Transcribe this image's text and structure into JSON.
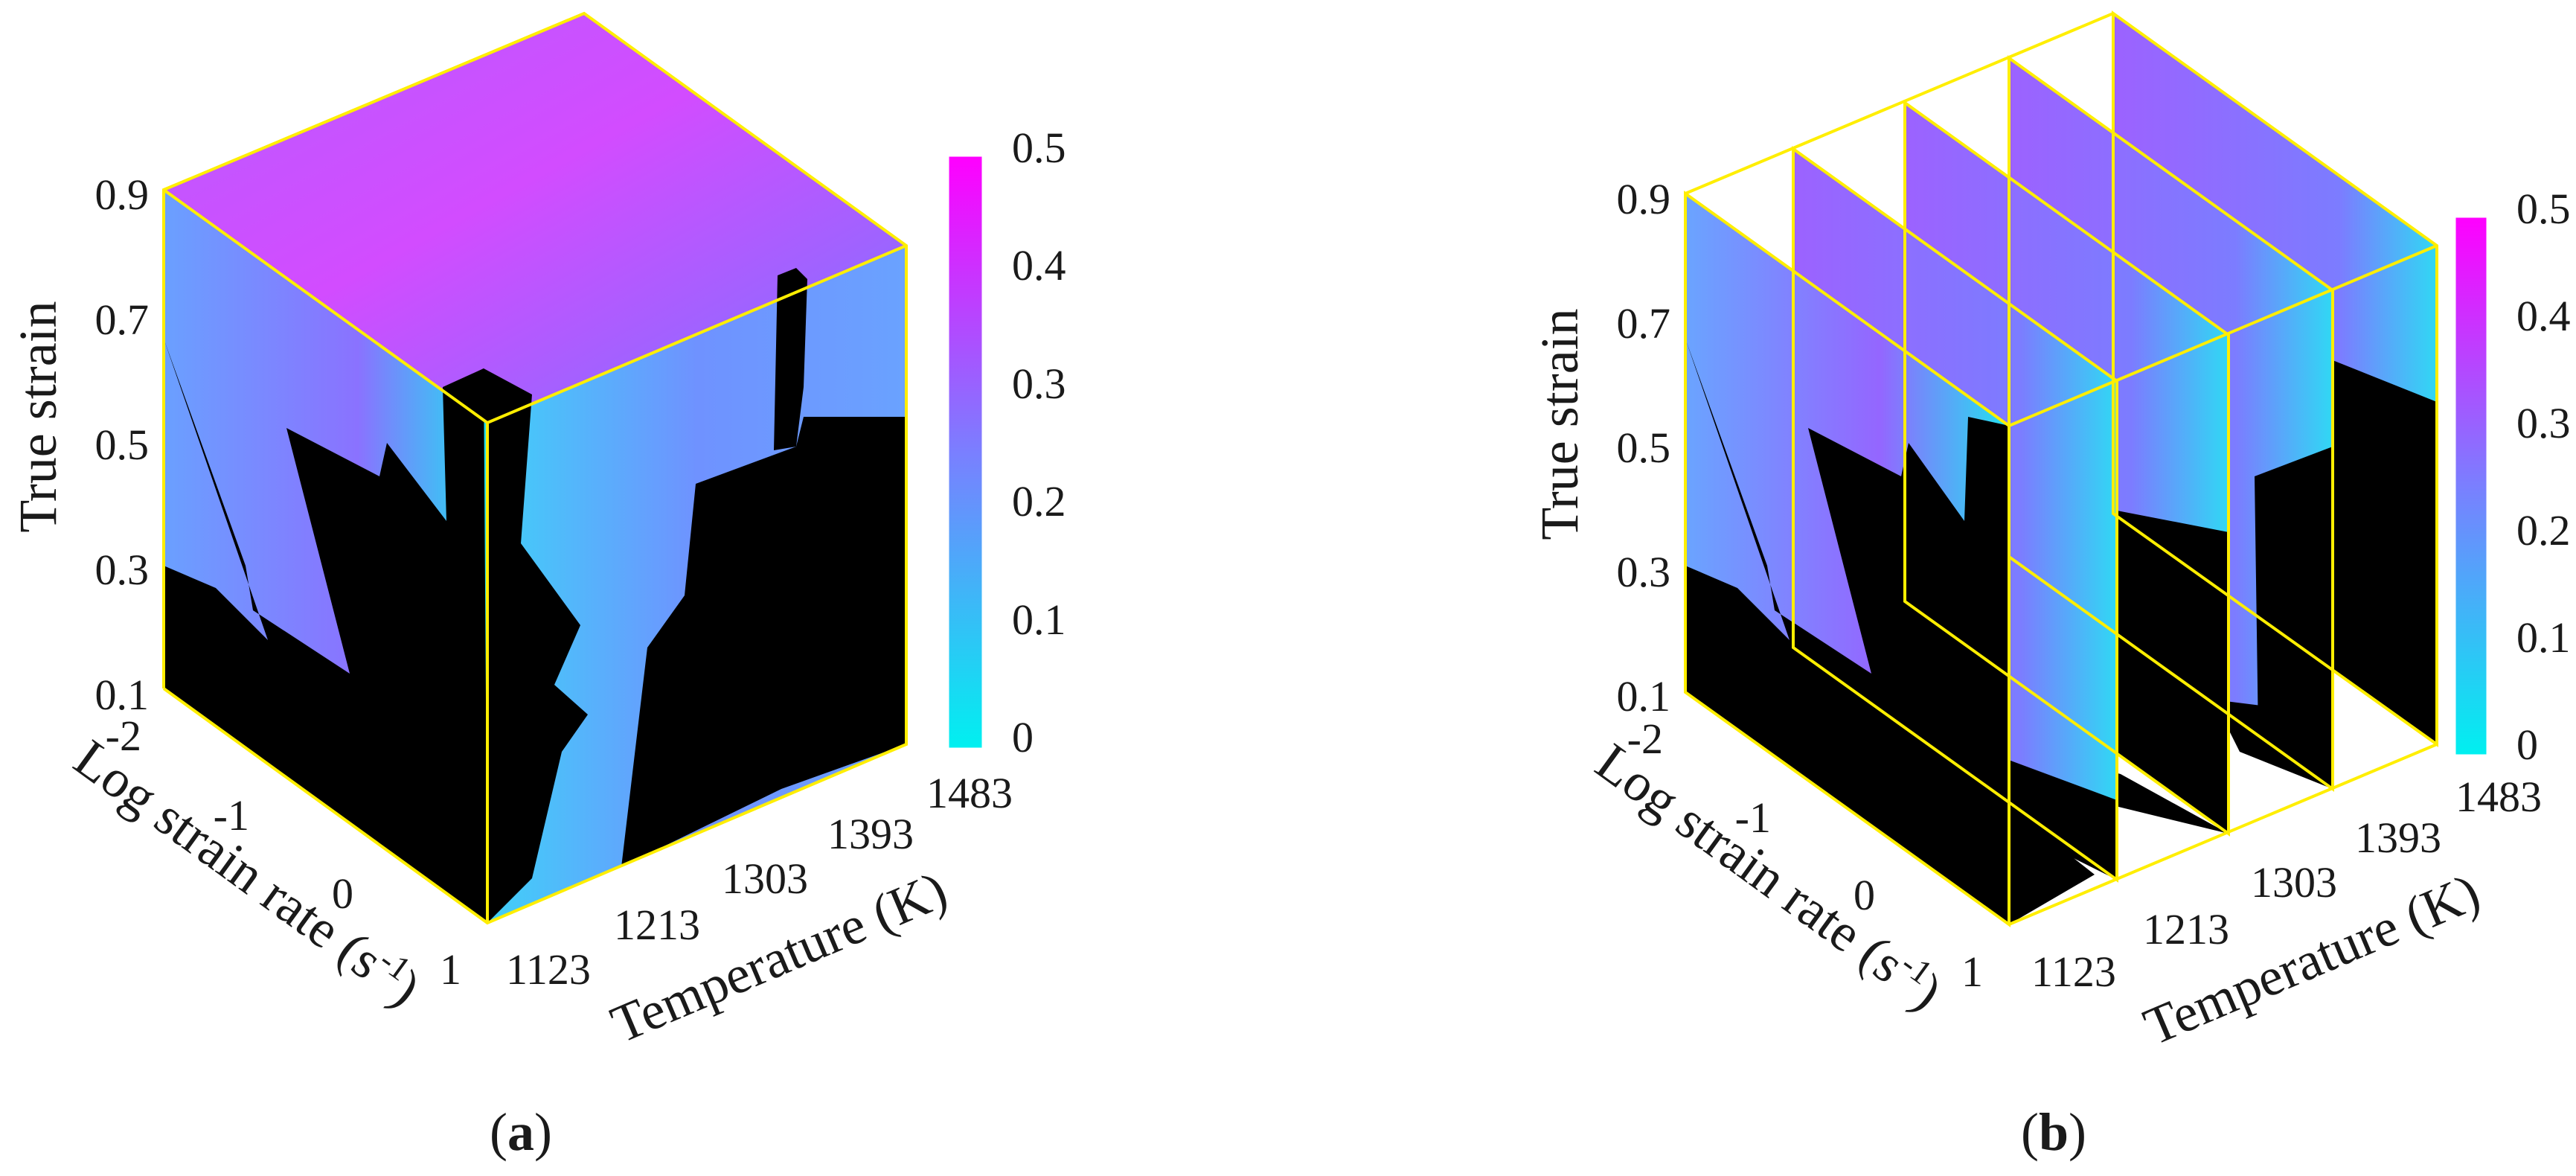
{
  "colors": {
    "unstable": "#000000",
    "frame": "#ffee00",
    "cmap_low": "#00f0f0",
    "cmap_mid": "#9b57ff",
    "cmap_high": "#ff00ff"
  },
  "chart_data": [
    {
      "type": "heatmap",
      "panel": "a",
      "view": "3D cube, all faces",
      "title": "",
      "xlabel": "Temperature (K)",
      "ylabel": "Log strain rate (s",
      "ylabel_sup": "-1",
      "ylabel_close": ")",
      "zlabel": "True strain",
      "x_ticks": [
        "1123",
        "1213",
        "1303",
        "1393",
        "1483"
      ],
      "y_ticks": [
        "-2",
        "-1",
        "0",
        "1"
      ],
      "z_ticks": [
        "0.1",
        "0.3",
        "0.5",
        "0.7",
        "0.9"
      ],
      "xlim": [
        1123,
        1483
      ],
      "ylim": [
        -2,
        1
      ],
      "zlim": [
        0.1,
        0.9
      ],
      "colorbar": {
        "min": 0,
        "max": 0.5,
        "ticks": [
          "0",
          "0.1",
          "0.2",
          "0.3",
          "0.4",
          "0.5"
        ]
      }
    },
    {
      "type": "heatmap",
      "panel": "b",
      "view": "3D slices at constant temperature",
      "title": "",
      "xlabel": "Temperature (K)",
      "ylabel": "Log strain rate (s",
      "ylabel_sup": "-1",
      "ylabel_close": ")",
      "zlabel": "True strain",
      "x_ticks": [
        "1123",
        "1213",
        "1303",
        "1393",
        "1483"
      ],
      "y_ticks": [
        "-2",
        "-1",
        "0",
        "1"
      ],
      "z_ticks": [
        "0.1",
        "0.3",
        "0.5",
        "0.7",
        "0.9"
      ],
      "slices_at_temperature": [
        1123,
        1213,
        1303,
        1393,
        1483
      ],
      "xlim": [
        1123,
        1483
      ],
      "ylim": [
        -2,
        1
      ],
      "zlim": [
        0.1,
        0.9
      ],
      "colorbar": {
        "min": 0,
        "max": 0.5,
        "ticks": [
          "0",
          "0.1",
          "0.2",
          "0.3",
          "0.4",
          "0.5"
        ]
      }
    }
  ],
  "labels": {
    "a": {
      "open": "(",
      "letter": "a",
      "close": ")"
    },
    "b": {
      "open": "(",
      "letter": "b",
      "close": ")"
    }
  }
}
